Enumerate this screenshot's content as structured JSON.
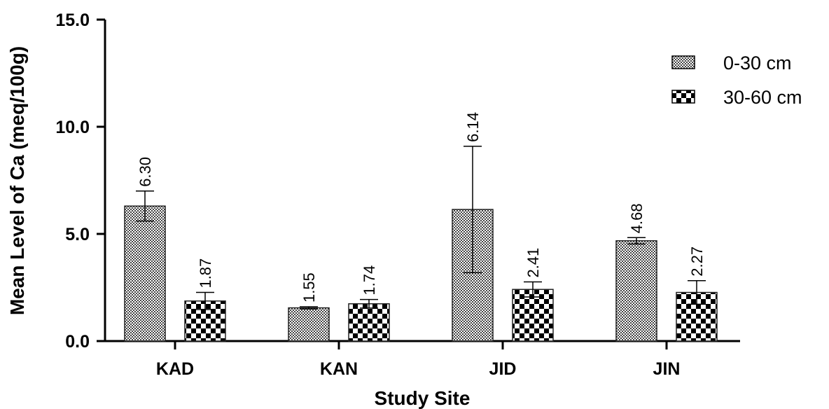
{
  "chart_data": {
    "type": "bar",
    "categories": [
      "KAD",
      "KAN",
      "JID",
      "JIN"
    ],
    "series": [
      {
        "name": "0-30 cm",
        "values": [
          6.3,
          1.55,
          6.14,
          4.68
        ],
        "errors": [
          0.7,
          0.05,
          2.95,
          0.15
        ],
        "value_labels": [
          "6.30",
          "1.55",
          "6.14",
          "4.68"
        ],
        "pattern": "fine-checker"
      },
      {
        "name": "30-60 cm",
        "values": [
          1.87,
          1.74,
          2.41,
          2.27
        ],
        "errors": [
          0.4,
          0.2,
          0.35,
          0.55
        ],
        "value_labels": [
          "1.87",
          "1.74",
          "2.41",
          "2.27"
        ],
        "pattern": "coarse-checker"
      }
    ],
    "ylabel": "Mean Level of Ca (meq/100g)",
    "xlabel": "Study Site",
    "ylim": [
      0,
      15
    ],
    "yticks": [
      {
        "value": 0,
        "label": "0.0"
      },
      {
        "value": 5,
        "label": "5.0"
      },
      {
        "value": 10,
        "label": "10.0"
      },
      {
        "value": 15,
        "label": "15.0"
      }
    ],
    "grid": false,
    "legend": "top-right"
  }
}
